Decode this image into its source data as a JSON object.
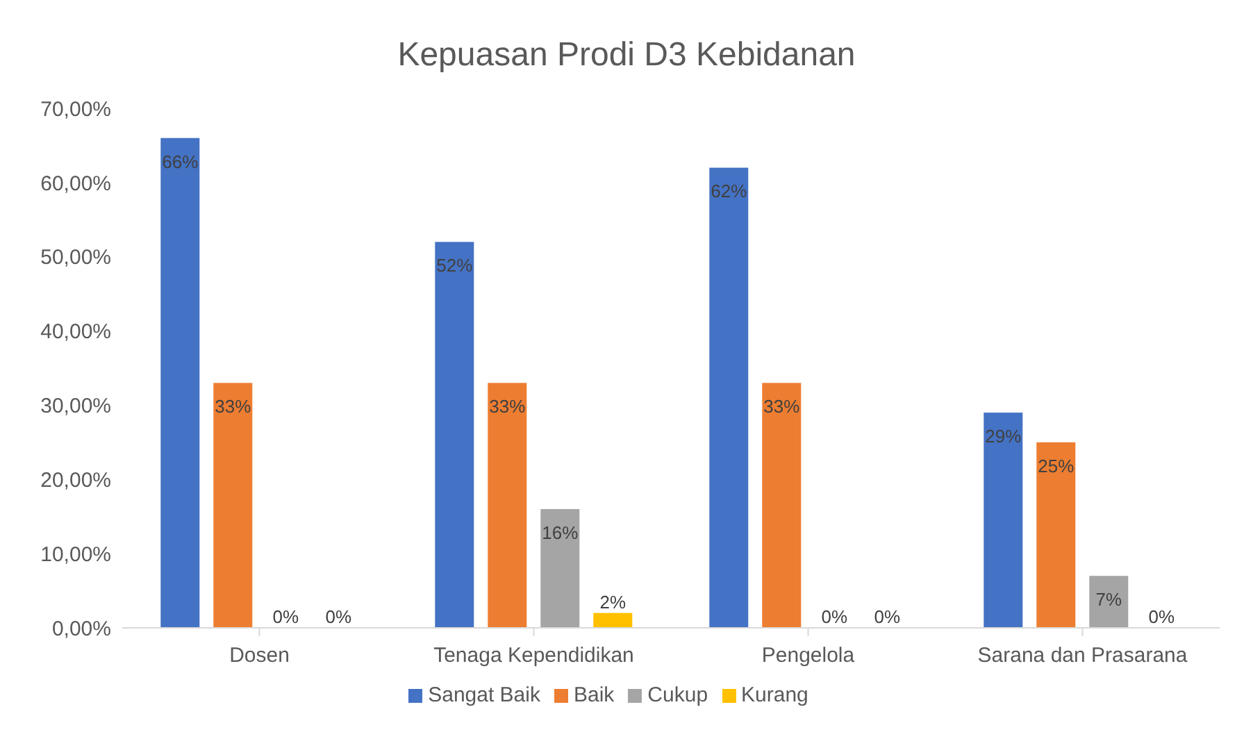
{
  "chart_data": {
    "type": "bar",
    "title": "Kepuasan Prodi D3 Kebidanan",
    "categories": [
      "Dosen",
      "Tenaga Kependidikan",
      "Pengelola",
      "Sarana dan Prasarana"
    ],
    "series": [
      {
        "name": "Sangat Baik",
        "color": "#4472c4",
        "values": [
          66,
          52,
          62,
          29
        ],
        "value_labels": [
          "66%",
          "52%",
          "62%",
          "29%"
        ]
      },
      {
        "name": "Baik",
        "color": "#ed7d31",
        "values": [
          33,
          33,
          33,
          25
        ],
        "value_labels": [
          "33%",
          "33%",
          "33%",
          "25%"
        ]
      },
      {
        "name": "Cukup",
        "color": "#a5a5a5",
        "values": [
          0,
          16,
          0,
          7
        ],
        "value_labels": [
          "0%",
          "16%",
          "0%",
          "7%"
        ]
      },
      {
        "name": "Kurang",
        "color": "#ffc000",
        "values": [
          0,
          2,
          0,
          0
        ],
        "value_labels": [
          "0%",
          "2%",
          "0%",
          "0%"
        ]
      }
    ],
    "ylim": [
      0,
      70
    ],
    "yticks": [
      {
        "value": 0,
        "label": "0,00%"
      },
      {
        "value": 10,
        "label": "10,00%"
      },
      {
        "value": 20,
        "label": "20,00%"
      },
      {
        "value": 30,
        "label": "30,00%"
      },
      {
        "value": 40,
        "label": "40,00%"
      },
      {
        "value": 50,
        "label": "50,00%"
      },
      {
        "value": 60,
        "label": "60,00%"
      },
      {
        "value": 70,
        "label": "70,00%"
      }
    ],
    "grid": false,
    "legend": "bottom"
  }
}
